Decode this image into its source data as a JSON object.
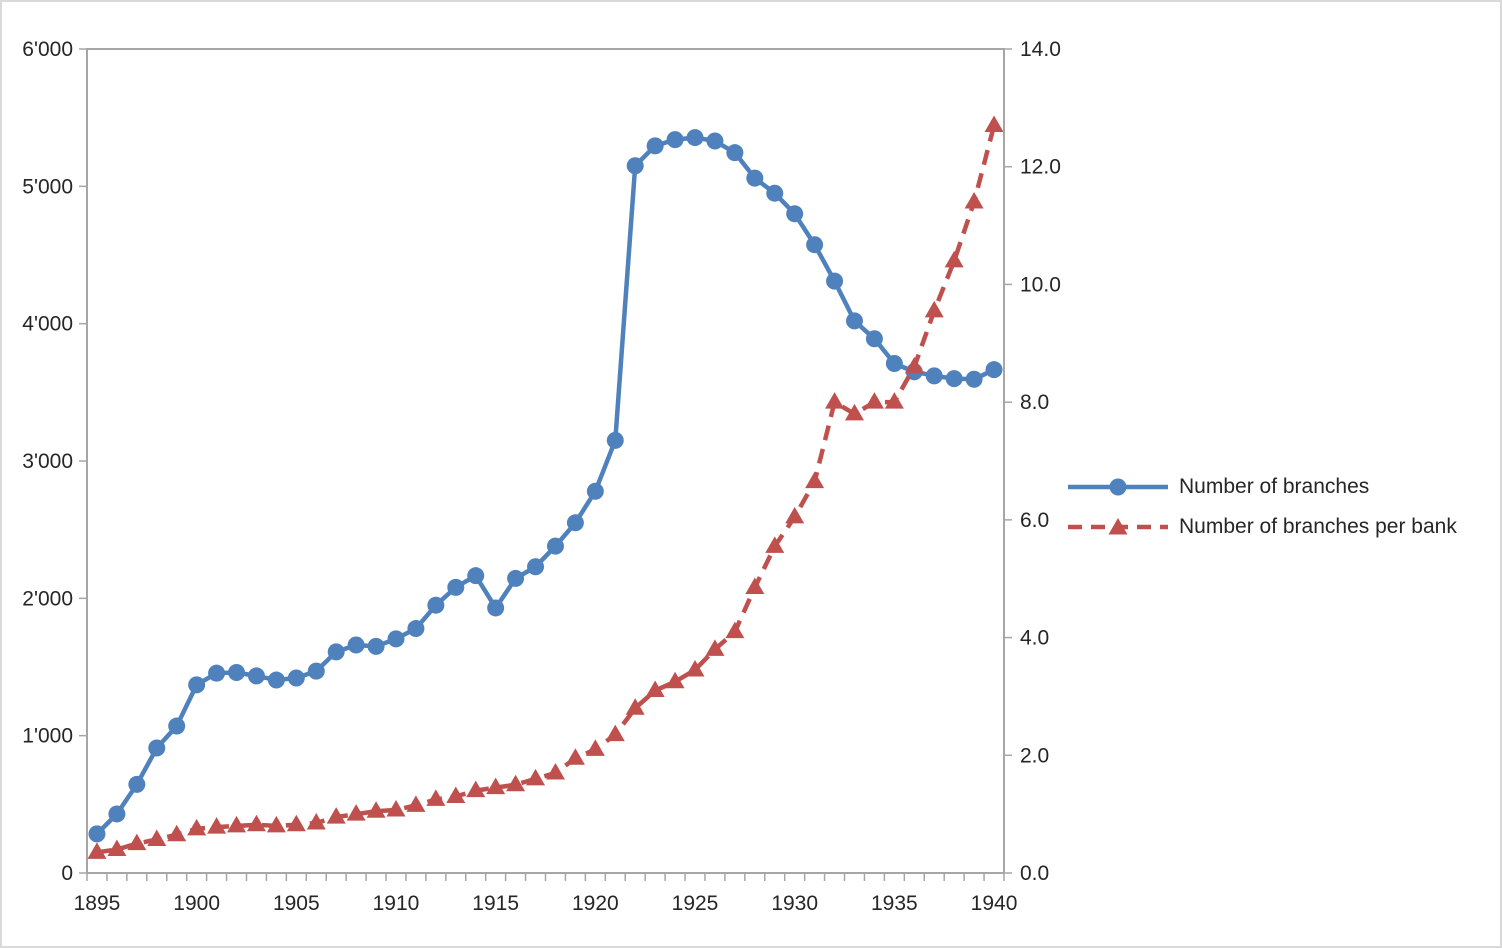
{
  "chart_data": {
    "type": "line",
    "title": "",
    "x": [
      1895,
      1896,
      1897,
      1898,
      1899,
      1900,
      1901,
      1902,
      1903,
      1904,
      1905,
      1906,
      1907,
      1908,
      1909,
      1910,
      1911,
      1912,
      1913,
      1914,
      1915,
      1916,
      1917,
      1918,
      1919,
      1920,
      1921,
      1922,
      1923,
      1924,
      1925,
      1926,
      1927,
      1928,
      1929,
      1930,
      1931,
      1932,
      1933,
      1934,
      1935,
      1936,
      1937,
      1938,
      1939,
      1940
    ],
    "x_tick_labels": [
      "1895",
      "1900",
      "1905",
      "1910",
      "1915",
      "1920",
      "1925",
      "1930",
      "1935",
      "1940"
    ],
    "series": [
      {
        "name": "Number of branches",
        "axis": "left",
        "color": "#4F81BD",
        "marker": "circle",
        "line_style": "solid",
        "values": [
          285,
          430,
          645,
          910,
          1070,
          1370,
          1455,
          1460,
          1435,
          1405,
          1420,
          1470,
          1610,
          1660,
          1650,
          1705,
          1780,
          1950,
          2080,
          2165,
          1930,
          2145,
          2230,
          2380,
          2550,
          2780,
          3150,
          5150,
          5295,
          5340,
          5355,
          5330,
          5245,
          5060,
          4950,
          4800,
          4575,
          4310,
          4020,
          3890,
          3710,
          3650,
          3620,
          3600,
          3595,
          3665
        ]
      },
      {
        "name": "Number of branches per bank",
        "axis": "right",
        "color": "#C0504D",
        "marker": "triangle",
        "line_style": "dashed",
        "values": [
          0.35,
          0.4,
          0.5,
          0.57,
          0.65,
          0.75,
          0.78,
          0.8,
          0.82,
          0.8,
          0.82,
          0.85,
          0.95,
          1.0,
          1.05,
          1.07,
          1.15,
          1.25,
          1.3,
          1.4,
          1.45,
          1.5,
          1.6,
          1.7,
          1.95,
          2.1,
          2.35,
          2.8,
          3.1,
          3.25,
          3.45,
          3.8,
          4.1,
          4.85,
          5.55,
          6.05,
          6.65,
          8.0,
          7.8,
          8.0,
          8.0,
          8.6,
          9.55,
          10.4,
          11.4,
          12.7
        ]
      }
    ],
    "left_axis": {
      "min": 0,
      "max": 6000,
      "tick_step": 1000,
      "tick_labels": [
        "0",
        "1'000",
        "2'000",
        "3'000",
        "4'000",
        "5'000",
        "6'000"
      ]
    },
    "right_axis": {
      "min": 0,
      "max": 14,
      "tick_step": 2,
      "tick_labels": [
        "0.0",
        "2.0",
        "4.0",
        "6.0",
        "8.0",
        "10.0",
        "12.0",
        "14.0"
      ]
    },
    "legend": {
      "position": "right-middle"
    },
    "grid": false,
    "axis_line_color": "#A6A6A6",
    "tick_label_color": "#262626"
  }
}
